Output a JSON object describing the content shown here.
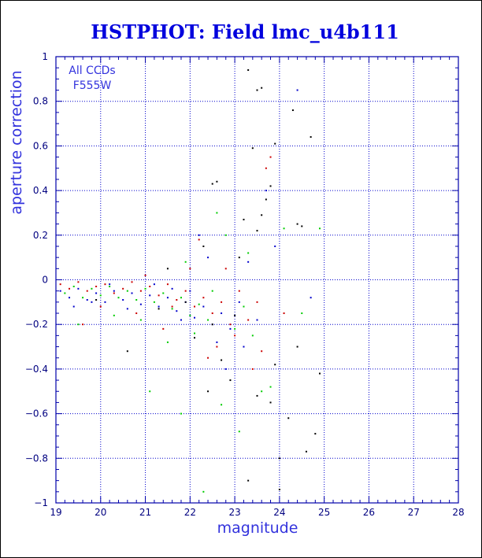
{
  "chart_data": {
    "type": "scatter",
    "title": "HSTPHOT: Field lmc_u4b111",
    "xlabel": "magnitude",
    "ylabel": "aperture correction",
    "xlim": [
      19,
      28
    ],
    "ylim": [
      -1,
      1
    ],
    "x_ticks": [
      19,
      20,
      21,
      22,
      23,
      24,
      25,
      26,
      27,
      28
    ],
    "y_ticks": [
      -1,
      -0.8,
      -0.6,
      -0.4,
      -0.2,
      0,
      0.2,
      0.4,
      0.6,
      0.8,
      1
    ],
    "x_tick_labels": [
      "19",
      "20",
      "21",
      "22",
      "23",
      "24",
      "25",
      "26",
      "27",
      "28"
    ],
    "y_tick_labels": [
      "−1",
      "−0.8",
      "−0.6",
      "−0.4",
      "−0.2",
      "0",
      "0.2",
      "0.4",
      "0.6",
      "0.8",
      "1"
    ],
    "grid": true,
    "annotations": [
      "All CCDs",
      "F555W"
    ],
    "colors": {
      "title": "#0000dd",
      "axes": "#0000aa",
      "grid": "#0000cc",
      "series_1": "#cc0000",
      "series_2": "#00cc00",
      "series_3": "#0000cc",
      "series_4": "#000000"
    },
    "series": [
      {
        "color": "#cc0000",
        "points": [
          [
            19.1,
            -0.02
          ],
          [
            19.3,
            -0.04
          ],
          [
            19.5,
            -0.01
          ],
          [
            19.7,
            -0.05
          ],
          [
            19.9,
            -0.03
          ],
          [
            20.1,
            -0.02
          ],
          [
            20.3,
            -0.06
          ],
          [
            20.5,
            -0.04
          ],
          [
            20.7,
            -0.01
          ],
          [
            20.9,
            -0.05
          ],
          [
            21.1,
            -0.03
          ],
          [
            21.3,
            -0.07
          ],
          [
            21.5,
            -0.02
          ],
          [
            21.7,
            -0.09
          ],
          [
            21.9,
            -0.05
          ],
          [
            22.1,
            -0.12
          ],
          [
            22.3,
            -0.08
          ],
          [
            22.5,
            -0.15
          ],
          [
            22.7,
            -0.1
          ],
          [
            22.9,
            -0.2
          ],
          [
            23.1,
            -0.05
          ],
          [
            23.3,
            -0.18
          ],
          [
            23.5,
            -0.1
          ],
          [
            23.7,
            0.5
          ],
          [
            23.8,
            0.55
          ],
          [
            22.2,
            0.18
          ],
          [
            22.6,
            -0.3
          ],
          [
            23.0,
            -0.25
          ],
          [
            23.6,
            -0.32
          ],
          [
            19.6,
            -0.2
          ],
          [
            20.0,
            -0.12
          ],
          [
            20.8,
            -0.15
          ],
          [
            21.4,
            -0.22
          ],
          [
            22.8,
            0.05
          ],
          [
            23.4,
            -0.4
          ],
          [
            22.4,
            -0.35
          ],
          [
            24.1,
            -0.15
          ],
          [
            21.0,
            0.02
          ],
          [
            21.6,
            -0.12
          ],
          [
            22.0,
            0.05
          ]
        ]
      },
      {
        "color": "#00cc00",
        "points": [
          [
            19.2,
            -0.06
          ],
          [
            19.4,
            -0.03
          ],
          [
            19.6,
            -0.08
          ],
          [
            19.8,
            -0.04
          ],
          [
            20.0,
            -0.07
          ],
          [
            20.2,
            -0.03
          ],
          [
            20.4,
            -0.08
          ],
          [
            20.6,
            -0.05
          ],
          [
            20.8,
            -0.09
          ],
          [
            21.0,
            -0.04
          ],
          [
            21.2,
            -0.1
          ],
          [
            21.4,
            -0.06
          ],
          [
            21.6,
            -0.13
          ],
          [
            21.8,
            -0.08
          ],
          [
            22.0,
            -0.16
          ],
          [
            22.2,
            -0.11
          ],
          [
            22.4,
            -0.18
          ],
          [
            22.6,
            0.3
          ],
          [
            22.8,
            0.2
          ],
          [
            23.0,
            -0.22
          ],
          [
            23.2,
            -0.12
          ],
          [
            23.4,
            -0.25
          ],
          [
            23.6,
            -0.5
          ],
          [
            24.1,
            0.23
          ],
          [
            24.9,
            0.23
          ],
          [
            22.3,
            -0.95
          ],
          [
            21.8,
            -0.6
          ],
          [
            21.1,
            -0.5
          ],
          [
            19.5,
            -0.2
          ],
          [
            20.3,
            -0.16
          ],
          [
            22.1,
            -0.24
          ],
          [
            23.8,
            -0.48
          ],
          [
            23.1,
            -0.68
          ],
          [
            22.7,
            -0.56
          ],
          [
            21.5,
            -0.28
          ],
          [
            24.5,
            -0.15
          ],
          [
            21.9,
            0.08
          ],
          [
            20.9,
            -0.18
          ],
          [
            22.5,
            -0.05
          ],
          [
            23.3,
            0.12
          ]
        ]
      },
      {
        "color": "#0000cc",
        "points": [
          [
            19.1,
            -0.05
          ],
          [
            19.3,
            -0.08
          ],
          [
            19.5,
            -0.04
          ],
          [
            19.7,
            -0.09
          ],
          [
            19.9,
            -0.06
          ],
          [
            20.1,
            -0.1
          ],
          [
            20.3,
            -0.05
          ],
          [
            20.5,
            -0.09
          ],
          [
            20.7,
            -0.06
          ],
          [
            20.9,
            -0.11
          ],
          [
            21.1,
            -0.07
          ],
          [
            21.3,
            -0.12
          ],
          [
            21.5,
            -0.08
          ],
          [
            21.7,
            -0.14
          ],
          [
            21.9,
            -0.1
          ],
          [
            22.1,
            -0.17
          ],
          [
            22.3,
            -0.12
          ],
          [
            22.5,
            -0.2
          ],
          [
            22.7,
            -0.15
          ],
          [
            22.9,
            -0.22
          ],
          [
            23.1,
            -0.1
          ],
          [
            23.3,
            0.08
          ],
          [
            23.5,
            -0.18
          ],
          [
            23.7,
            0.4
          ],
          [
            24.4,
            0.85
          ],
          [
            22.2,
            0.2
          ],
          [
            24.7,
            -0.08
          ],
          [
            21.2,
            -0.02
          ],
          [
            20.6,
            -0.13
          ],
          [
            19.8,
            -0.1
          ],
          [
            22.6,
            -0.28
          ],
          [
            23.2,
            -0.3
          ],
          [
            21.8,
            -0.18
          ],
          [
            22.0,
            -0.05
          ],
          [
            23.9,
            0.15
          ],
          [
            22.8,
            -0.4
          ],
          [
            20.2,
            -0.02
          ],
          [
            21.6,
            -0.04
          ],
          [
            22.4,
            0.1
          ],
          [
            19.4,
            -0.12
          ]
        ]
      },
      {
        "color": "#000000",
        "points": [
          [
            23.3,
            0.94
          ],
          [
            23.6,
            0.86
          ],
          [
            23.5,
            0.85
          ],
          [
            24.3,
            0.76
          ],
          [
            23.9,
            0.61
          ],
          [
            23.4,
            0.59
          ],
          [
            24.7,
            0.64
          ],
          [
            22.5,
            0.43
          ],
          [
            22.6,
            0.44
          ],
          [
            23.8,
            0.42
          ],
          [
            23.7,
            0.36
          ],
          [
            23.2,
            0.27
          ],
          [
            23.6,
            0.29
          ],
          [
            23.5,
            0.22
          ],
          [
            24.5,
            0.24
          ],
          [
            24.4,
            0.25
          ],
          [
            22.3,
            0.15
          ],
          [
            23.1,
            0.1
          ],
          [
            22.9,
            -0.45
          ],
          [
            22.4,
            -0.5
          ],
          [
            23.8,
            -0.55
          ],
          [
            24.2,
            -0.62
          ],
          [
            24.8,
            -0.69
          ],
          [
            24.0,
            -0.8
          ],
          [
            24.6,
            -0.77
          ],
          [
            23.3,
            -0.9
          ],
          [
            24.0,
            -0.94
          ],
          [
            22.7,
            -0.36
          ],
          [
            24.9,
            -0.42
          ],
          [
            23.5,
            -0.52
          ],
          [
            21.5,
            0.05
          ],
          [
            20.6,
            -0.32
          ],
          [
            19.9,
            -0.09
          ],
          [
            21.3,
            -0.13
          ],
          [
            22.1,
            -0.26
          ],
          [
            23.0,
            -0.16
          ],
          [
            24.4,
            -0.3
          ],
          [
            22.5,
            -0.2
          ],
          [
            23.9,
            -0.38
          ],
          [
            21.9,
            -0.1
          ]
        ]
      }
    ]
  }
}
